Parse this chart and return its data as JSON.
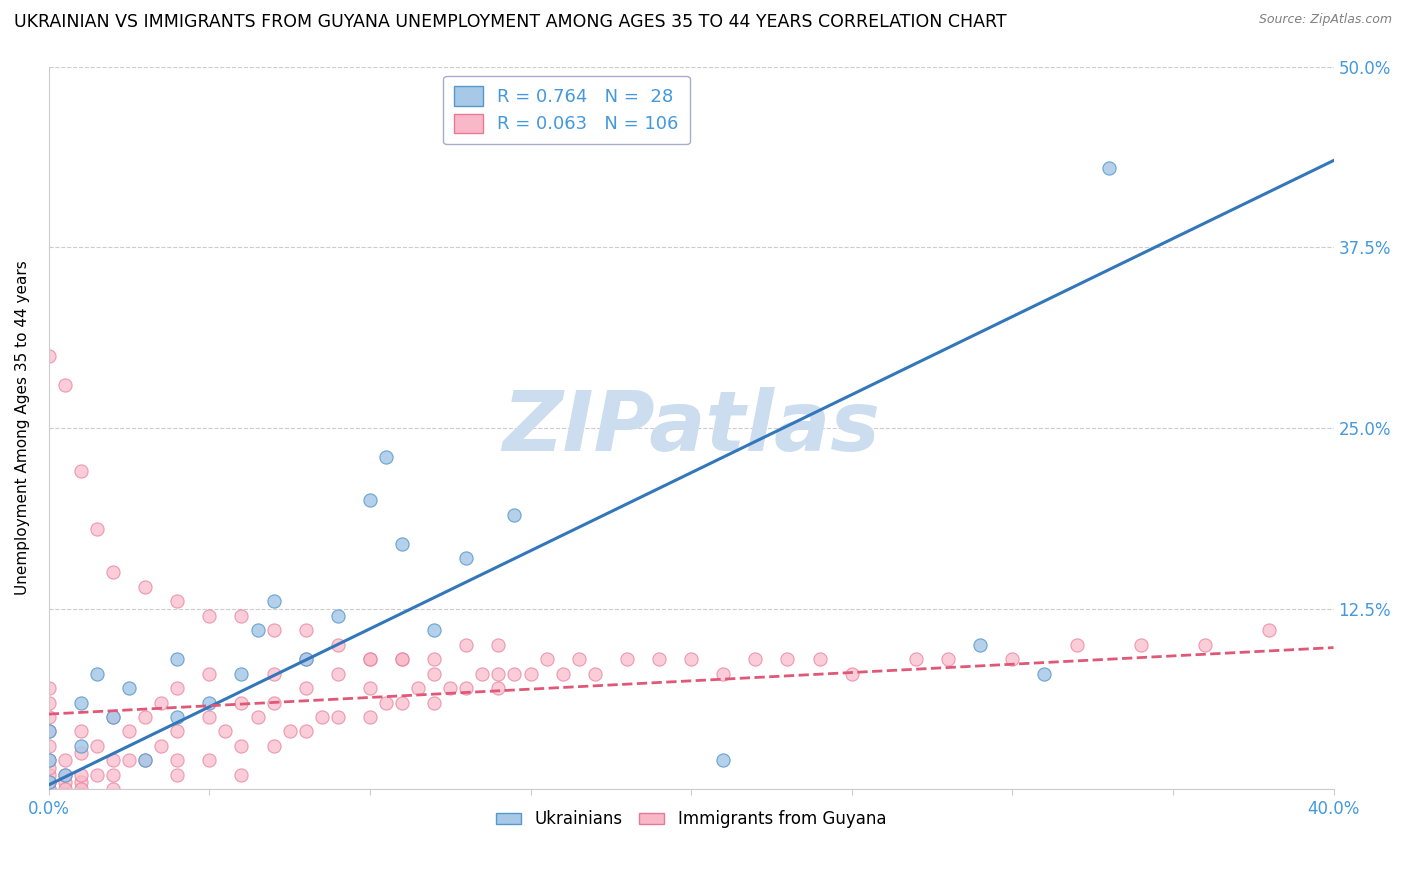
{
  "title": "UKRAINIAN VS IMMIGRANTS FROM GUYANA UNEMPLOYMENT AMONG AGES 35 TO 44 YEARS CORRELATION CHART",
  "source": "Source: ZipAtlas.com",
  "ylabel": "Unemployment Among Ages 35 to 44 years",
  "xlim": [
    0.0,
    0.4
  ],
  "ylim": [
    0.0,
    0.5
  ],
  "yticks": [
    0.0,
    0.125,
    0.25,
    0.375,
    0.5
  ],
  "ytick_labels": [
    "",
    "12.5%",
    "25.0%",
    "37.5%",
    "50.0%"
  ],
  "xticks": [
    0.0,
    0.05,
    0.1,
    0.15,
    0.2,
    0.25,
    0.3,
    0.35,
    0.4
  ],
  "xtick_labels": [
    "0.0%",
    "",
    "",
    "",
    "",
    "",
    "",
    "",
    "40.0%"
  ],
  "color_blue": "#a8c8e8",
  "color_blue_edge": "#5599cc",
  "color_blue_line": "#3377bb",
  "color_pink": "#f8b8c8",
  "color_pink_edge": "#e87898",
  "color_pink_line": "#e05878",
  "color_axis_text": "#4499dd",
  "color_grid": "#cccccc",
  "watermark_text": "ZIPatlas",
  "watermark_color": "#ccddf0",
  "title_fontsize": 12.5,
  "axis_label_fontsize": 11,
  "tick_fontsize": 12,
  "legend_fontsize": 13,
  "blue_line_x0": 0.0,
  "blue_line_y0": 0.003,
  "blue_line_x1": 0.4,
  "blue_line_y1": 0.435,
  "pink_line_x0": 0.0,
  "pink_line_y0": 0.052,
  "pink_line_x1": 0.4,
  "pink_line_y1": 0.098,
  "blue_x": [
    0.0,
    0.0,
    0.0,
    0.005,
    0.01,
    0.01,
    0.015,
    0.02,
    0.025,
    0.03,
    0.04,
    0.04,
    0.05,
    0.06,
    0.065,
    0.07,
    0.08,
    0.09,
    0.1,
    0.105,
    0.11,
    0.12,
    0.13,
    0.145,
    0.21,
    0.29,
    0.31,
    0.33
  ],
  "blue_y": [
    0.005,
    0.02,
    0.04,
    0.01,
    0.03,
    0.06,
    0.08,
    0.05,
    0.07,
    0.02,
    0.05,
    0.09,
    0.06,
    0.08,
    0.11,
    0.13,
    0.09,
    0.12,
    0.2,
    0.23,
    0.17,
    0.11,
    0.16,
    0.19,
    0.02,
    0.1,
    0.08,
    0.43
  ],
  "pink_x": [
    0.0,
    0.0,
    0.0,
    0.0,
    0.0,
    0.0,
    0.0,
    0.0,
    0.0,
    0.0,
    0.005,
    0.005,
    0.005,
    0.01,
    0.01,
    0.01,
    0.01,
    0.015,
    0.015,
    0.02,
    0.02,
    0.02,
    0.025,
    0.025,
    0.03,
    0.03,
    0.035,
    0.035,
    0.04,
    0.04,
    0.04,
    0.05,
    0.05,
    0.05,
    0.055,
    0.06,
    0.06,
    0.065,
    0.07,
    0.07,
    0.07,
    0.075,
    0.08,
    0.08,
    0.08,
    0.085,
    0.09,
    0.09,
    0.1,
    0.1,
    0.1,
    0.105,
    0.11,
    0.11,
    0.115,
    0.12,
    0.12,
    0.125,
    0.13,
    0.13,
    0.135,
    0.14,
    0.14,
    0.145,
    0.15,
    0.155,
    0.16,
    0.165,
    0.17,
    0.18,
    0.19,
    0.2,
    0.21,
    0.22,
    0.23,
    0.24,
    0.25,
    0.27,
    0.28,
    0.3,
    0.32,
    0.34,
    0.36,
    0.38,
    0.0,
    0.005,
    0.01,
    0.015,
    0.02,
    0.03,
    0.04,
    0.05,
    0.06,
    0.07,
    0.08,
    0.09,
    0.1,
    0.11,
    0.12,
    0.14,
    0.0,
    0.005,
    0.01,
    0.02,
    0.04,
    0.06
  ],
  "pink_y": [
    0.0,
    0.005,
    0.01,
    0.015,
    0.02,
    0.03,
    0.04,
    0.05,
    0.06,
    0.07,
    0.005,
    0.01,
    0.02,
    0.005,
    0.01,
    0.025,
    0.04,
    0.01,
    0.03,
    0.01,
    0.02,
    0.05,
    0.02,
    0.04,
    0.02,
    0.05,
    0.03,
    0.06,
    0.02,
    0.04,
    0.07,
    0.02,
    0.05,
    0.08,
    0.04,
    0.03,
    0.06,
    0.05,
    0.03,
    0.06,
    0.08,
    0.04,
    0.04,
    0.07,
    0.09,
    0.05,
    0.05,
    0.08,
    0.05,
    0.07,
    0.09,
    0.06,
    0.06,
    0.09,
    0.07,
    0.06,
    0.09,
    0.07,
    0.07,
    0.1,
    0.08,
    0.07,
    0.1,
    0.08,
    0.08,
    0.09,
    0.08,
    0.09,
    0.08,
    0.09,
    0.09,
    0.09,
    0.08,
    0.09,
    0.09,
    0.09,
    0.08,
    0.09,
    0.09,
    0.09,
    0.1,
    0.1,
    0.1,
    0.11,
    0.3,
    0.28,
    0.22,
    0.18,
    0.15,
    0.14,
    0.13,
    0.12,
    0.12,
    0.11,
    0.11,
    0.1,
    0.09,
    0.09,
    0.08,
    0.08,
    0.0,
    0.0,
    0.0,
    0.0,
    0.01,
    0.01
  ]
}
